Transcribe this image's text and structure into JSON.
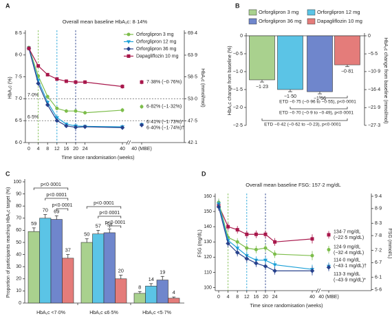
{
  "chart_data": [
    {
      "panel": "A",
      "type": "line",
      "title": "Overall mean baseline HbA₁c: 8·14%",
      "x_label": "Time since randomisation (weeks)",
      "y_label": "HbA₁c (%)",
      "y2_label": "HbA₁c (mmol/mol)",
      "x": [
        0,
        4,
        8,
        12,
        16,
        20,
        24,
        40
      ],
      "xlim": [
        -1.5,
        42
      ],
      "xticks": [
        0,
        4,
        8,
        12,
        16,
        20,
        24,
        40
      ],
      "mbe_tick": "40 (MBE)",
      "ylim": [
        6,
        8.5
      ],
      "yticks": [
        {
          "value": 6,
          "label": "6·0"
        },
        {
          "value": 6.5,
          "label": "6·5"
        },
        {
          "value": 7,
          "label": "7·0"
        },
        {
          "value": 7.5,
          "label": "7·5"
        },
        {
          "value": 8,
          "label": "8·0"
        },
        {
          "value": 8.5,
          "label": "8·5"
        }
      ],
      "y2lim": [
        42.1,
        69.4
      ],
      "y2ticks": [
        {
          "value": 42.1,
          "label": "42·1"
        },
        {
          "value": 47.5,
          "label": "47·5"
        },
        {
          "value": 53,
          "label": "53·0"
        },
        {
          "value": 58.5,
          "label": "58·5"
        },
        {
          "value": 63.9,
          "label": "63·9"
        },
        {
          "value": 69.4,
          "label": "69·4"
        }
      ],
      "hlines": [
        {
          "value": 7,
          "label": "7·0%"
        },
        {
          "value": 6.5,
          "label": "6·5%"
        }
      ],
      "vlines": [
        {
          "value": 4,
          "color": "#7dbd4b"
        },
        {
          "value": 12,
          "color": "#1ba0d7"
        },
        {
          "value": 20,
          "color": "#27418c"
        }
      ],
      "legend": "top-right",
      "series": [
        {
          "name": "Orforglipron 3 mg",
          "color": "#7dbd4b",
          "marker": "circle",
          "values": [
            8.17,
            7.52,
            7.05,
            6.78,
            6.72,
            6.72,
            6.68,
            6.74
          ],
          "errors": [
            0.04,
            0.04,
            0.04,
            0.04,
            0.04,
            0.04,
            0.04,
            0.05
          ],
          "mbe": 6.82,
          "mbe_error": 0.05,
          "mbe_label": "6·82% (−1·32%)"
        },
        {
          "name": "Orforglipron 12 mg",
          "color": "#1ba0d7",
          "marker": "triangle",
          "values": [
            8.16,
            7.42,
            6.92,
            6.57,
            6.42,
            6.38,
            6.37,
            6.36
          ],
          "errors": [
            0.04,
            0.04,
            0.04,
            0.04,
            0.04,
            0.04,
            0.04,
            0.05
          ],
          "mbe": 6.41,
          "mbe_error": 0.05,
          "mbe_label": "6·41% (−1·73%)*"
        },
        {
          "name": "Orforglipron 36 mg",
          "color": "#27418c",
          "marker": "diamond",
          "values": [
            8.15,
            7.35,
            6.86,
            6.5,
            6.38,
            6.35,
            6.36,
            6.34
          ],
          "errors": [
            0.04,
            0.04,
            0.04,
            0.04,
            0.04,
            0.04,
            0.04,
            0.05
          ],
          "mbe": 6.4,
          "mbe_error": 0.05,
          "mbe_label": "6·40% (−1·74%)†"
        },
        {
          "name": "Dapagliflozin 10 mg",
          "color": "#a8174b",
          "marker": "square",
          "values": [
            8.15,
            7.75,
            7.55,
            7.45,
            7.4,
            7.38,
            7.38,
            7.28
          ],
          "errors": [
            0.04,
            0.04,
            0.04,
            0.04,
            0.04,
            0.04,
            0.04,
            0.05
          ],
          "mbe": 7.38,
          "mbe_error": 0.05,
          "mbe_label": "7·38% (−0·76%)"
        }
      ]
    },
    {
      "panel": "B",
      "type": "bar",
      "legend": "top",
      "categories": [
        "Orforglipron 3 mg",
        "Orforglipron 12 mg",
        "Orforglipron 36 mg",
        "Dapagliflozin 10 mg"
      ],
      "colors": [
        "#a9d18e",
        "#5bc4e6",
        "#6f86cc",
        "#e47c7a"
      ],
      "values": [
        -1.23,
        -1.5,
        -1.56,
        -0.81
      ],
      "value_labels": [
        "−1·23",
        "−1·50",
        "−1·56",
        "−0·81"
      ],
      "errors": [
        0.06,
        0.06,
        0.06,
        0.05
      ],
      "y_label": "HbA₁c change from baseline (%)",
      "y2_label": "HbA₁c change from baseline (mmol/mol)",
      "ylim": [
        -2.5,
        0
      ],
      "yticks": [
        {
          "value": -2.5,
          "label": "−2·5"
        },
        {
          "value": -2,
          "label": "−2·0"
        },
        {
          "value": -1.5,
          "label": "−1·5"
        },
        {
          "value": -1,
          "label": "−1·0"
        },
        {
          "value": -0.5,
          "label": "−0·5"
        },
        0
      ],
      "y2lim": [
        -27.3,
        0
      ],
      "y2ticks": [
        {
          "value": -27.3,
          "label": "−27·3"
        },
        {
          "value": -21.9,
          "label": "−21·9"
        },
        {
          "value": -16.4,
          "label": "−16·4"
        },
        {
          "value": -10.9,
          "label": "−10·9"
        },
        {
          "value": -5.5,
          "label": "−5·5"
        },
        0
      ],
      "annotations": [
        "ETD −0·75 (−0·96 to −0·55), p<0·0001",
        "ETD −0·70 (−0·9 to −0·49), p<0·0001",
        "ETD −0·42 (−0·62 to −0·23), p<0·0001"
      ]
    },
    {
      "panel": "C",
      "type": "grouped_bar",
      "categories": [
        "HbA₁c <7·0%",
        "HbA₁c ≤6·5%",
        "HbA₁c <5·7%"
      ],
      "y_label": "Proportion of participants reaching HbA₁c target (%)",
      "ylim": [
        0,
        100
      ],
      "yticks": [
        0,
        10,
        20,
        30,
        40,
        50,
        60,
        70,
        80,
        90,
        100
      ],
      "series": [
        {
          "color": "#a9d18e",
          "values": [
            59,
            50,
            8
          ],
          "errors": [
            3,
            3,
            1.5
          ]
        },
        {
          "color": "#5bc4e6",
          "values": [
            70,
            57,
            14
          ],
          "errors": [
            3,
            3,
            2
          ]
        },
        {
          "color": "#6f86cc",
          "values": [
            69,
            58,
            19
          ],
          "errors": [
            3,
            3,
            3
          ]
        },
        {
          "color": "#e47c7a",
          "values": [
            37,
            20,
            4
          ],
          "errors": [
            3,
            3,
            1
          ]
        }
      ],
      "significance": [
        "p<0·0001",
        "p<0·0001",
        "p<0·0001",
        "p<0·0001",
        "p<0·0001",
        "p<0·0001"
      ]
    },
    {
      "panel": "D",
      "type": "line",
      "title": "Overall mean baseline FSG: 157·2 mg/dL",
      "x_label": "Time since randomisation (weeks)",
      "y_label": "FSG (mg/dL)",
      "y2_label": "FSG (mmol/L)",
      "x": [
        0,
        4,
        8,
        12,
        16,
        20,
        24,
        40
      ],
      "xlim": [
        -1.5,
        42
      ],
      "xticks": [
        0,
        4,
        8,
        12,
        16,
        20,
        24,
        40
      ],
      "mbe_tick": "40 (MBE)",
      "ylim": [
        98,
        160
      ],
      "yticks": [
        100,
        110,
        120,
        130,
        140,
        150,
        160
      ],
      "y2lim": [
        5.56,
        9.4
      ],
      "y2ticks": [
        {
          "value": 5.6,
          "label": "5·6"
        },
        {
          "value": 6.1,
          "label": "6·1"
        },
        {
          "value": 6.7,
          "label": "6·7"
        },
        {
          "value": 7.2,
          "label": "7·2"
        },
        {
          "value": 7.8,
          "label": "7·8"
        },
        {
          "value": 8.3,
          "label": "8·3"
        },
        {
          "value": 8.9,
          "label": "8·9"
        },
        {
          "value": 9.4,
          "label": "9·4"
        }
      ],
      "vlines": [
        {
          "value": 4,
          "color": "#7dbd4b"
        },
        {
          "value": 12,
          "color": "#1ba0d7"
        },
        {
          "value": 20,
          "color": "#27418c"
        }
      ],
      "series": [
        {
          "color": "#a8174b",
          "marker": "square",
          "values": [
            154,
            140,
            138,
            135,
            135,
            135,
            130,
            132
          ],
          "errors": [
            2.5,
            2.5,
            2.5,
            2.5,
            2.5,
            2.5,
            2.5,
            3
          ],
          "mbe": 134.7,
          "mbe_error": 2.5,
          "mbe_label": [
            "134·7 mg/dL",
            "(−22·5 mg/dL)"
          ]
        },
        {
          "color": "#7dbd4b",
          "marker": "circle",
          "values": [
            156,
            133,
            130,
            126,
            125,
            126,
            122,
            121
          ],
          "errors": [
            2.5,
            2.5,
            2.5,
            2.5,
            2.5,
            2.5,
            2.5,
            3
          ],
          "mbe": 124.9,
          "mbe_error": 2.5,
          "mbe_label": [
            "124·9 mg/dL",
            "(−32·4 mg/dL)"
          ]
        },
        {
          "color": "#1ba0d7",
          "marker": "triangle",
          "values": [
            155,
            131,
            126,
            121,
            118,
            118,
            115,
            112
          ],
          "errors": [
            2.5,
            2.5,
            2.5,
            2.5,
            2.5,
            2.5,
            2.5,
            3
          ],
          "mbe": 114.0,
          "mbe_error": 2.5,
          "mbe_label": [
            "114·0 mg/dL",
            "(−43·1 mg/dL)†"
          ]
        },
        {
          "color": "#27418c",
          "marker": "diamond",
          "values": [
            153,
            129,
            123,
            119,
            116,
            114,
            111,
            111
          ],
          "errors": [
            2.5,
            2.5,
            2.5,
            2.5,
            2.5,
            2.5,
            2.5,
            3
          ],
          "mbe": 113.3,
          "mbe_error": 2.5,
          "mbe_label": [
            "113·3 mg/dL",
            "(−43·9 mg/dL)*"
          ]
        }
      ]
    }
  ]
}
